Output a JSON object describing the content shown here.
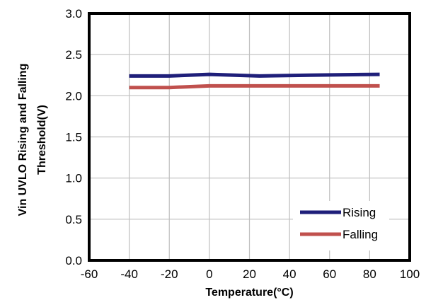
{
  "chart_data": {
    "type": "line",
    "title": "",
    "xlabel": "Temperature(°C)",
    "ylabel": [
      "Vin UVLO Rising and Falling",
      "Threshold(V)"
    ],
    "xlim": [
      -60,
      100
    ],
    "ylim": [
      0,
      3.0
    ],
    "x_ticks": [
      "-60",
      "-40",
      "-20",
      "0",
      "20",
      "40",
      "60",
      "80",
      "100"
    ],
    "y_ticks": [
      "0.0",
      "0.5",
      "1.0",
      "1.5",
      "2.0",
      "2.5",
      "3.0"
    ],
    "grid": true,
    "legend_position": "bottom-right",
    "series": [
      {
        "name": "Rising",
        "color": "#1f1f7a",
        "x": [
          -40,
          -20,
          0,
          25,
          50,
          85
        ],
        "y": [
          2.24,
          2.24,
          2.26,
          2.24,
          2.25,
          2.26
        ]
      },
      {
        "name": "Falling",
        "color": "#c0504d",
        "x": [
          -40,
          -20,
          0,
          25,
          50,
          85
        ],
        "y": [
          2.1,
          2.1,
          2.12,
          2.12,
          2.12,
          2.12
        ]
      }
    ]
  }
}
